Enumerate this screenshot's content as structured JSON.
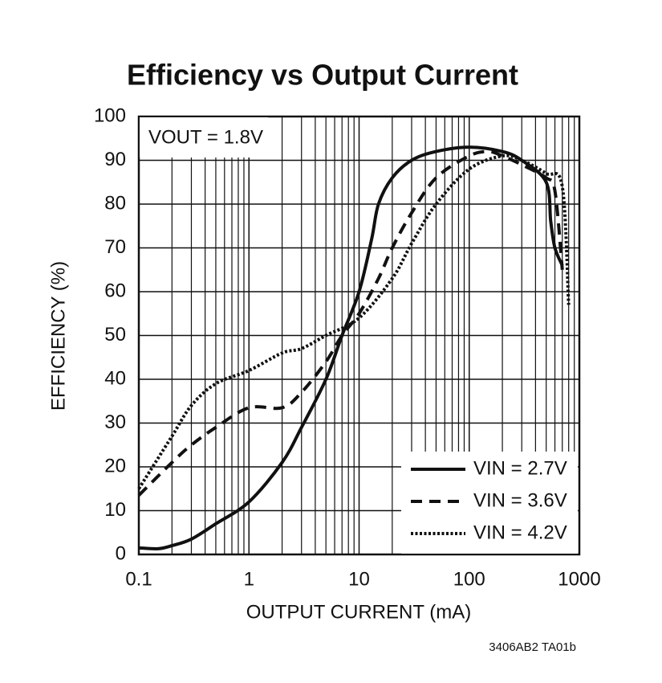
{
  "chart_data": {
    "type": "line",
    "title": "Efficiency vs Output Current",
    "xlabel": "OUTPUT CURRENT (mA)",
    "ylabel": "EFFICIENCY (%)",
    "annotation": "VOUT = 1.8V",
    "footnote": "3406AB2 TA01b",
    "xscale": "log",
    "grid": true,
    "legend": "lower right",
    "xlim": [
      0.1,
      1000
    ],
    "ylim": [
      0,
      100
    ],
    "xticks": [
      0.1,
      1,
      10,
      100,
      1000
    ],
    "yticks": [
      0,
      10,
      20,
      30,
      40,
      50,
      60,
      70,
      80,
      90,
      100
    ],
    "series": [
      {
        "name": "VIN = 2.7V",
        "color": "#111111",
        "dash": "solid",
        "x": [
          0.1,
          0.15,
          0.2,
          0.3,
          0.5,
          1,
          2,
          3,
          5,
          7,
          10,
          13,
          15,
          20,
          30,
          50,
          100,
          200,
          300,
          500,
          550,
          600,
          700
        ],
        "values": [
          1.5,
          1.3,
          2,
          3.5,
          7,
          12,
          21,
          29,
          40,
          50,
          60,
          72,
          80,
          86,
          90,
          92,
          93,
          92,
          90,
          85,
          76,
          70,
          66
        ]
      },
      {
        "name": "VIN = 3.6V",
        "color": "#111111",
        "dash": "dashed",
        "x": [
          0.1,
          0.2,
          0.3,
          0.5,
          1,
          2,
          3,
          5,
          7,
          10,
          15,
          20,
          30,
          50,
          100,
          150,
          200,
          300,
          500,
          600,
          700
        ],
        "values": [
          13.5,
          21,
          25,
          29,
          33.5,
          33.5,
          37,
          44,
          50,
          55,
          63,
          70,
          78,
          86,
          91,
          92,
          91,
          89,
          86,
          83,
          65
        ]
      },
      {
        "name": "VIN = 4.2V",
        "color": "#111111",
        "dash": "dotted",
        "x": [
          0.1,
          0.2,
          0.3,
          0.5,
          1,
          2,
          3,
          5,
          10,
          20,
          30,
          50,
          100,
          200,
          300,
          500,
          700,
          800
        ],
        "values": [
          15,
          27,
          34,
          39,
          42,
          46,
          47,
          50,
          54,
          63,
          71,
          80,
          88,
          91,
          90,
          87,
          84,
          57
        ]
      }
    ]
  }
}
